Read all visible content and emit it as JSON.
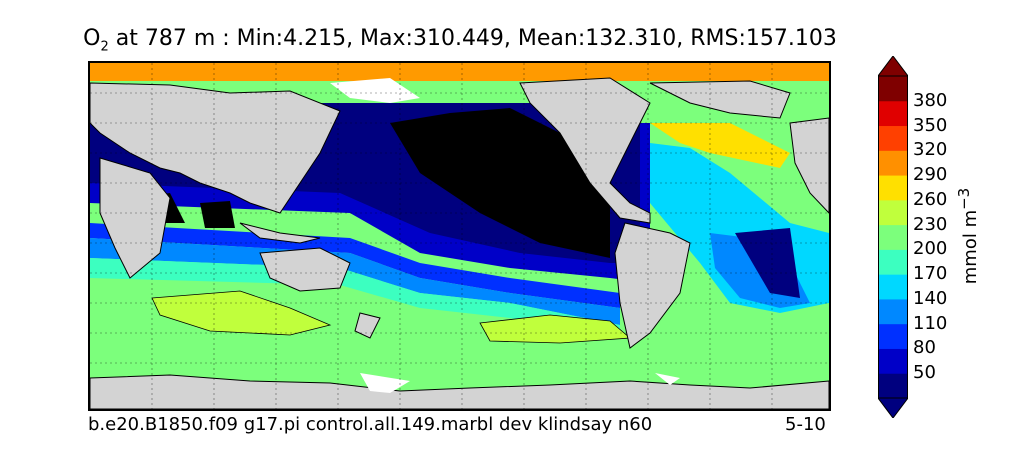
{
  "title": {
    "species": "O",
    "species_sub": "2",
    "rest": " at 787 m : Min:4.215, Max:310.449, Mean:132.310, RMS:157.103"
  },
  "footer": {
    "case": "b.e20.B1850.f09 g17.pi control.all.149.marbl dev klindsay n60",
    "years": "5-10"
  },
  "colorbar": {
    "units": "mmol m",
    "units_sup": "−3",
    "ticks": [
      "50",
      "80",
      "110",
      "140",
      "170",
      "200",
      "230",
      "260",
      "290",
      "320",
      "350",
      "380"
    ],
    "colors": [
      "#00007f",
      "#0000c8",
      "#0030ff",
      "#0088ff",
      "#00d8ff",
      "#3cffc0",
      "#7cff7c",
      "#c0ff3c",
      "#ffe000",
      "#ff9000",
      "#ff4000",
      "#e00000",
      "#7f0000"
    ]
  },
  "legend_colors": {
    "land": "#d3d3d3",
    "missing": "#ffffff",
    "low_oxygen": "#000000"
  }
}
